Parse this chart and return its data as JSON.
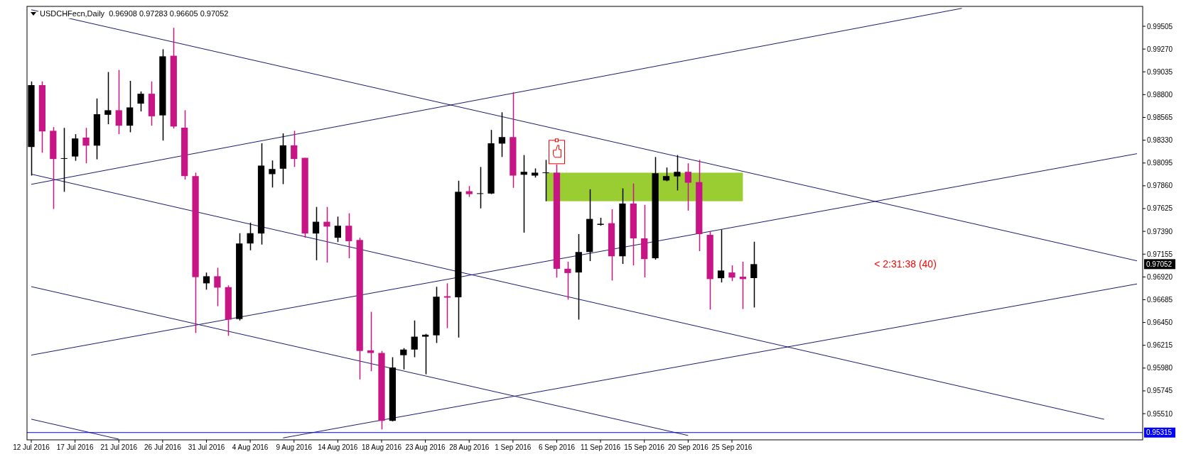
{
  "chart_data": {
    "type": "candlestick",
    "title": "USDCHFecn,Daily  0.96908 0.97283 0.96605 0.97052",
    "categories": [
      "12 Jul 2016",
      null,
      null,
      null,
      "17 Jul 2016",
      null,
      null,
      null,
      "21 Jul 2016",
      null,
      null,
      null,
      "26 Jul 2016",
      null,
      null,
      null,
      "31 Jul 2016",
      null,
      null,
      null,
      "4 Aug 2016",
      null,
      null,
      null,
      "9 Aug 2016",
      null,
      null,
      null,
      "14 Aug 2016",
      null,
      null,
      null,
      "18 Aug 2016",
      null,
      null,
      null,
      "23 Aug 2016",
      null,
      null,
      null,
      "28 Aug 2016",
      null,
      null,
      null,
      "1 Sep 2016",
      null,
      null,
      null,
      "6 Sep 2016",
      null,
      null,
      null,
      "11 Sep 2016",
      null,
      null,
      null,
      "15 Sep 2016",
      null,
      null,
      null,
      "20 Sep 2016",
      null,
      null,
      null,
      "25 Sep 2016",
      null,
      null,
      null,
      null,
      null,
      null,
      null,
      null,
      null,
      null,
      null,
      null,
      null,
      null,
      null,
      null,
      null,
      null,
      null,
      null,
      null,
      null,
      null,
      null,
      null,
      null,
      null,
      null,
      null,
      null,
      null,
      null,
      null,
      null,
      null,
      null,
      null
    ],
    "ohlc": [
      [
        0.9826,
        0.98936,
        0.97965,
        0.98898
      ],
      [
        0.98898,
        0.98936,
        0.98201,
        0.98421
      ],
      [
        0.98427,
        0.98465,
        0.97621,
        0.98136
      ],
      [
        0.98139,
        0.98457,
        0.97798,
        0.98145
      ],
      [
        0.98162,
        0.98392,
        0.98118,
        0.98348
      ],
      [
        0.98357,
        0.98457,
        0.98092,
        0.98274
      ],
      [
        0.98274,
        0.9876,
        0.98133,
        0.98598
      ],
      [
        0.98592,
        0.99033,
        0.98495,
        0.98639
      ],
      [
        0.98639,
        0.99054,
        0.98392,
        0.9848
      ],
      [
        0.9848,
        0.98942,
        0.98412,
        0.98668
      ],
      [
        0.98707,
        0.98833,
        0.98627,
        0.98809
      ],
      [
        0.98809,
        0.98936,
        0.9848,
        0.98577
      ],
      [
        0.98586,
        0.99268,
        0.98327,
        0.99195
      ],
      [
        0.99201,
        0.99489,
        0.98451,
        0.98471
      ],
      [
        0.98459,
        0.98639,
        0.97924,
        0.9796
      ],
      [
        0.9796,
        0.97995,
        0.96342,
        0.96918
      ],
      [
        0.96854,
        0.96965,
        0.96789,
        0.96927
      ],
      [
        0.96927,
        0.97015,
        0.96618,
        0.9681
      ],
      [
        0.96815,
        0.96833,
        0.96313,
        0.9648
      ],
      [
        0.96486,
        0.97371,
        0.96471,
        0.97265
      ],
      [
        0.97265,
        0.9748,
        0.97195,
        0.97371
      ],
      [
        0.97368,
        0.98298,
        0.97254,
        0.98068
      ],
      [
        0.9798,
        0.98121,
        0.97842,
        0.98033
      ],
      [
        0.98036,
        0.98401,
        0.97877,
        0.98277
      ],
      [
        0.98277,
        0.98427,
        0.98054,
        0.98136
      ],
      [
        0.98148,
        0.98148,
        0.97324,
        0.97368
      ],
      [
        0.97368,
        0.97642,
        0.97092,
        0.97489
      ],
      [
        0.97489,
        0.97642,
        0.97068,
        0.97439
      ],
      [
        0.97324,
        0.97542,
        0.9728,
        0.97448
      ],
      [
        0.97448,
        0.97577,
        0.97113,
        0.97289
      ],
      [
        0.97301,
        0.97324,
        0.95863,
        0.96157
      ],
      [
        0.96163,
        0.9656,
        0.95948,
        0.96136
      ],
      [
        0.96136,
        0.96157,
        0.95348,
        0.95436
      ],
      [
        0.95436,
        0.96092,
        0.9543,
        0.95986
      ],
      [
        0.96113,
        0.96186,
        0.95966,
        0.96171
      ],
      [
        0.96171,
        0.96471,
        0.96092,
        0.96304
      ],
      [
        0.96304,
        0.96333,
        0.95916,
        0.96324
      ],
      [
        0.96318,
        0.96818,
        0.96239,
        0.96716
      ],
      [
        0.96721,
        0.96854,
        0.96392,
        0.96707
      ],
      [
        0.9671,
        0.97912,
        0.96295,
        0.97798
      ],
      [
        0.97804,
        0.97857,
        0.97745,
        0.97774
      ],
      [
        0.97777,
        0.98054,
        0.97627,
        0.97783
      ],
      [
        0.9778,
        0.98436,
        0.97774,
        0.98298
      ],
      [
        0.98295,
        0.98618,
        0.98157,
        0.98362
      ],
      [
        0.98362,
        0.98824,
        0.97839,
        0.97965
      ],
      [
        0.97974,
        0.98177,
        0.97377,
        0.98004
      ],
      [
        0.97965,
        0.98039,
        0.97945,
        0.97995
      ],
      [
        0.97992,
        0.98127,
        0.97701,
        0.97998
      ],
      [
        0.97995,
        0.9808,
        0.96913,
        0.97004
      ],
      [
        0.97004,
        0.97077,
        0.96686,
        0.9696
      ],
      [
        0.96966,
        0.97362,
        0.9648,
        0.97177
      ],
      [
        0.97177,
        0.97824,
        0.97083,
        0.97518
      ],
      [
        0.97457,
        0.9753,
        0.97448,
        0.97468
      ],
      [
        0.97474,
        0.97618,
        0.96883,
        0.97133
      ],
      [
        0.97133,
        0.97833,
        0.97054,
        0.97677
      ],
      [
        0.97677,
        0.97883,
        0.97039,
        0.97318
      ],
      [
        0.97318,
        0.97663,
        0.96915,
        0.97104
      ],
      [
        0.97113,
        0.98157,
        0.97098,
        0.97989
      ],
      [
        0.97915,
        0.98048,
        0.97907,
        0.9796
      ],
      [
        0.97957,
        0.98177,
        0.97812,
        0.98004
      ],
      [
        0.98004,
        0.98092,
        0.97604,
        0.97892
      ],
      [
        0.97898,
        0.98127,
        0.97186,
        0.97362
      ],
      [
        0.97354,
        0.97392,
        0.96583,
        0.96898
      ],
      [
        0.96907,
        0.97407,
        0.96863,
        0.96986
      ],
      [
        0.96966,
        0.97039,
        0.96877,
        0.96913
      ],
      [
        0.96922,
        0.97077,
        0.96589,
        0.96898
      ],
      [
        0.96908,
        0.97283,
        0.96605,
        0.97052
      ],
      null,
      null,
      null,
      null,
      null,
      null,
      null,
      null,
      null,
      null,
      null,
      null,
      null,
      null,
      null,
      null,
      null,
      null,
      null,
      null,
      null,
      null,
      null,
      null,
      null,
      null,
      null,
      null,
      null,
      null,
      null,
      null,
      null,
      null,
      null
    ],
    "colors": [
      "#000000",
      "#c71585",
      "#c71585",
      "#000000",
      "#000000",
      "#c71585",
      "#000000",
      "#000000",
      "#c71585",
      "#000000",
      "#000000",
      "#c71585",
      "#000000",
      "#c71585",
      "#c71585",
      "#c71585",
      "#000000",
      "#c71585",
      "#c71585",
      "#000000",
      "#000000",
      "#000000",
      "#000000",
      "#000000",
      "#c71585",
      "#c71585",
      "#000000",
      "#c71585",
      "#000000",
      "#c71585",
      "#c71585",
      "#c71585",
      "#c71585",
      "#000000",
      "#000000",
      "#000000",
      "#000000",
      "#000000",
      "#c71585",
      "#000000",
      "#c71585",
      "#000000",
      "#000000",
      "#000000",
      "#c71585",
      "#000000",
      "#000000",
      "#000000",
      "#c71585",
      "#c71585",
      "#000000",
      "#000000",
      "#000000",
      "#c71585",
      "#000000",
      "#c71585",
      "#c71585",
      "#000000",
      "#000000",
      "#000000",
      "#c71585",
      "#c71585",
      "#c71585",
      "#000000",
      "#c71585",
      "#c71585",
      "#000000",
      null,
      null,
      null,
      null,
      null,
      null,
      null,
      null,
      null,
      null,
      null,
      null,
      null,
      null,
      null,
      null,
      null,
      null,
      null,
      null,
      null,
      null,
      null,
      null,
      null,
      null,
      null,
      null,
      null,
      null,
      null,
      null,
      null,
      null,
      null
    ],
    "ylim": [
      0.9524,
      0.9971
    ],
    "yticks": [
      {
        "value": 0.99505,
        "label": "0.99505"
      },
      {
        "value": 0.9927,
        "label": "0.99270"
      },
      {
        "value": 0.99035,
        "label": "0.99035"
      },
      {
        "value": 0.988,
        "label": "0.98800"
      },
      {
        "value": 0.98565,
        "label": "0.98565"
      },
      {
        "value": 0.9833,
        "label": "0.98330"
      },
      {
        "value": 0.98095,
        "label": "0.98095"
      },
      {
        "value": 0.9786,
        "label": "0.97860"
      },
      {
        "value": 0.97625,
        "label": "0.97625"
      },
      {
        "value": 0.9739,
        "label": "0.97390"
      },
      {
        "value": 0.97155,
        "label": "0.97155"
      },
      {
        "value": 0.9692,
        "label": "0.96920"
      },
      {
        "value": 0.96685,
        "label": "0.96685"
      },
      {
        "value": 0.9645,
        "label": "0.96450"
      },
      {
        "value": 0.96215,
        "label": "0.96215"
      },
      {
        "value": 0.9598,
        "label": "0.95980"
      },
      {
        "value": 0.95745,
        "label": "0.95745"
      },
      {
        "value": 0.9551,
        "label": "0.95510"
      }
    ],
    "series": [
      {
        "type": "line",
        "color": "#191970",
        "values": [
          0.97875,
          null,
          null,
          null,
          null,
          null,
          null,
          null,
          null,
          null,
          null,
          null,
          null,
          null,
          null,
          null,
          null,
          null,
          null,
          null,
          null,
          null,
          null,
          null,
          null,
          null,
          null,
          null,
          null,
          null,
          null,
          null,
          null,
          null,
          null,
          null,
          null,
          null,
          null,
          null,
          null,
          null,
          null,
          null,
          null,
          null,
          null,
          null,
          null,
          null,
          null,
          null,
          null,
          null,
          null,
          null,
          null,
          null,
          null,
          null,
          null,
          null,
          null,
          null,
          null,
          null,
          null,
          null,
          null,
          null,
          null,
          null,
          null,
          null,
          null,
          null,
          null,
          null,
          null,
          null,
          null,
          null,
          null,
          null,
          null,
          0.9969,
          null,
          null,
          null,
          null,
          null,
          null,
          null,
          null,
          null,
          null,
          null,
          null,
          null,
          null,
          null,
          null
        ]
      },
      {
        "type": "line",
        "color": "#191970",
        "values": [
          0.99675,
          null,
          null,
          null,
          null,
          null,
          null,
          null,
          null,
          null,
          null,
          null,
          null,
          null,
          null,
          null,
          null,
          null,
          null,
          null,
          null,
          null,
          null,
          null,
          null,
          null,
          null,
          null,
          null,
          null,
          null,
          null,
          null,
          null,
          null,
          null,
          null,
          null,
          null,
          null,
          null,
          null,
          null,
          null,
          null,
          null,
          null,
          null,
          null,
          null,
          null,
          null,
          null,
          null,
          null,
          null,
          null,
          null,
          null,
          null,
          null,
          null,
          null,
          null,
          null,
          null,
          null,
          null,
          null,
          null,
          null,
          null,
          null,
          null,
          null,
          null,
          null,
          null,
          null,
          null,
          null,
          null,
          null,
          null,
          null,
          null,
          null,
          null,
          null,
          null,
          null,
          null,
          null,
          null,
          null,
          null,
          null,
          null,
          null,
          null,
          null,
          0.97086
        ]
      },
      {
        "type": "line",
        "color": "#191970",
        "values": [
          0.96114,
          null,
          null,
          null,
          null,
          null,
          null,
          null,
          null,
          null,
          null,
          null,
          null,
          null,
          null,
          null,
          null,
          null,
          null,
          null,
          null,
          null,
          null,
          null,
          null,
          null,
          null,
          null,
          null,
          null,
          null,
          null,
          null,
          null,
          null,
          null,
          null,
          null,
          null,
          null,
          null,
          null,
          null,
          null,
          null,
          null,
          null,
          null,
          null,
          null,
          null,
          null,
          null,
          null,
          null,
          null,
          null,
          null,
          null,
          null,
          null,
          null,
          null,
          null,
          null,
          null,
          null,
          null,
          null,
          null,
          null,
          null,
          null,
          null,
          null,
          null,
          null,
          null,
          null,
          null,
          null,
          null,
          null,
          null,
          null,
          null,
          null,
          null,
          null,
          null,
          null,
          null,
          null,
          null,
          null,
          null,
          null,
          null,
          null,
          null,
          null,
          0.98191
        ]
      },
      {
        "type": "line",
        "color": "#191970",
        "values": [
          0.9798,
          null,
          null,
          null,
          null,
          null,
          null,
          null,
          null,
          null,
          null,
          null,
          null,
          null,
          null,
          null,
          null,
          null,
          null,
          null,
          null,
          null,
          null,
          null,
          null,
          null,
          null,
          null,
          null,
          null,
          null,
          null,
          null,
          null,
          null,
          null,
          null,
          null,
          null,
          null,
          null,
          null,
          null,
          null,
          null,
          null,
          null,
          null,
          null,
          null,
          null,
          null,
          null,
          null,
          null,
          null,
          null,
          null,
          null,
          null,
          null,
          null,
          null,
          null,
          null,
          null,
          null,
          null,
          null,
          null,
          null,
          null,
          null,
          null,
          null,
          null,
          null,
          null,
          null,
          null,
          null,
          null,
          null,
          null,
          null,
          null,
          null,
          null,
          null,
          null,
          null,
          null,
          null,
          null,
          null,
          null,
          null,
          null,
          0.95452,
          null,
          null,
          null
        ]
      },
      {
        "type": "line",
        "color": "#191970",
        "values": [
          null,
          null,
          null,
          null,
          null,
          null,
          null,
          null,
          null,
          null,
          null,
          null,
          null,
          null,
          null,
          null,
          null,
          null,
          null,
          null,
          null,
          null,
          null,
          0.9526,
          null,
          null,
          null,
          null,
          null,
          null,
          null,
          null,
          null,
          null,
          null,
          null,
          null,
          null,
          null,
          null,
          null,
          null,
          null,
          null,
          null,
          null,
          null,
          null,
          null,
          null,
          null,
          null,
          null,
          null,
          null,
          null,
          null,
          null,
          null,
          null,
          null,
          null,
          null,
          null,
          null,
          null,
          null,
          null,
          null,
          null,
          null,
          null,
          null,
          null,
          null,
          null,
          null,
          null,
          null,
          null,
          null,
          null,
          null,
          null,
          null,
          null,
          null,
          null,
          null,
          null,
          null,
          null,
          null,
          null,
          null,
          null,
          null,
          null,
          null,
          null,
          null,
          0.96848
        ]
      },
      {
        "type": "line",
        "color": "#191970",
        "values": [
          0.9682,
          null,
          null,
          null,
          null,
          null,
          null,
          null,
          null,
          null,
          null,
          null,
          null,
          null,
          null,
          null,
          null,
          null,
          null,
          null,
          null,
          null,
          null,
          null,
          null,
          null,
          null,
          null,
          null,
          null,
          null,
          null,
          null,
          null,
          null,
          null,
          null,
          null,
          null,
          null,
          null,
          null,
          null,
          null,
          null,
          null,
          null,
          null,
          null,
          null,
          null,
          null,
          null,
          null,
          null,
          null,
          null,
          null,
          null,
          null,
          0.95285,
          null,
          null,
          null,
          null,
          null,
          null,
          null,
          null,
          null,
          null,
          null,
          null,
          null,
          null,
          null,
          null,
          null,
          null,
          null,
          null,
          null,
          null,
          null,
          null,
          null,
          null,
          null,
          null,
          null,
          null,
          null,
          null,
          null,
          null,
          null,
          null,
          null,
          null,
          null,
          null,
          null
        ]
      },
      {
        "type": "line",
        "color": "#191970",
        "values": [
          0.95453,
          null,
          null,
          null,
          null,
          null,
          null,
          null,
          0.95247,
          null,
          null,
          null,
          null,
          null,
          null,
          null,
          null,
          null,
          null,
          null,
          null,
          null,
          null,
          null,
          null,
          null,
          null,
          null,
          null,
          null,
          null,
          null,
          null,
          null,
          null,
          null,
          null,
          null,
          null,
          null,
          null,
          null,
          null,
          null,
          null,
          null,
          null,
          null,
          null,
          null,
          null,
          null,
          null,
          null,
          null,
          null,
          null,
          null,
          null,
          null,
          null,
          null,
          null,
          null,
          null,
          null,
          null,
          null,
          null,
          null,
          null,
          null,
          null,
          null,
          null,
          null,
          null,
          null,
          null,
          null,
          null,
          null,
          null,
          null,
          null,
          null,
          null,
          null,
          null,
          null,
          null,
          null,
          null,
          null,
          null,
          null,
          null,
          null,
          null,
          null,
          null,
          null
        ]
      }
    ],
    "ref_lines": [
      {
        "axis": "y",
        "value": 0.95315,
        "label": "0.95315",
        "color": "#0000ff"
      }
    ],
    "annotations": [
      "< 2:31:38 (40)",
      {
        "text": "0.97052",
        "y": 0.97052
      }
    ]
  }
}
